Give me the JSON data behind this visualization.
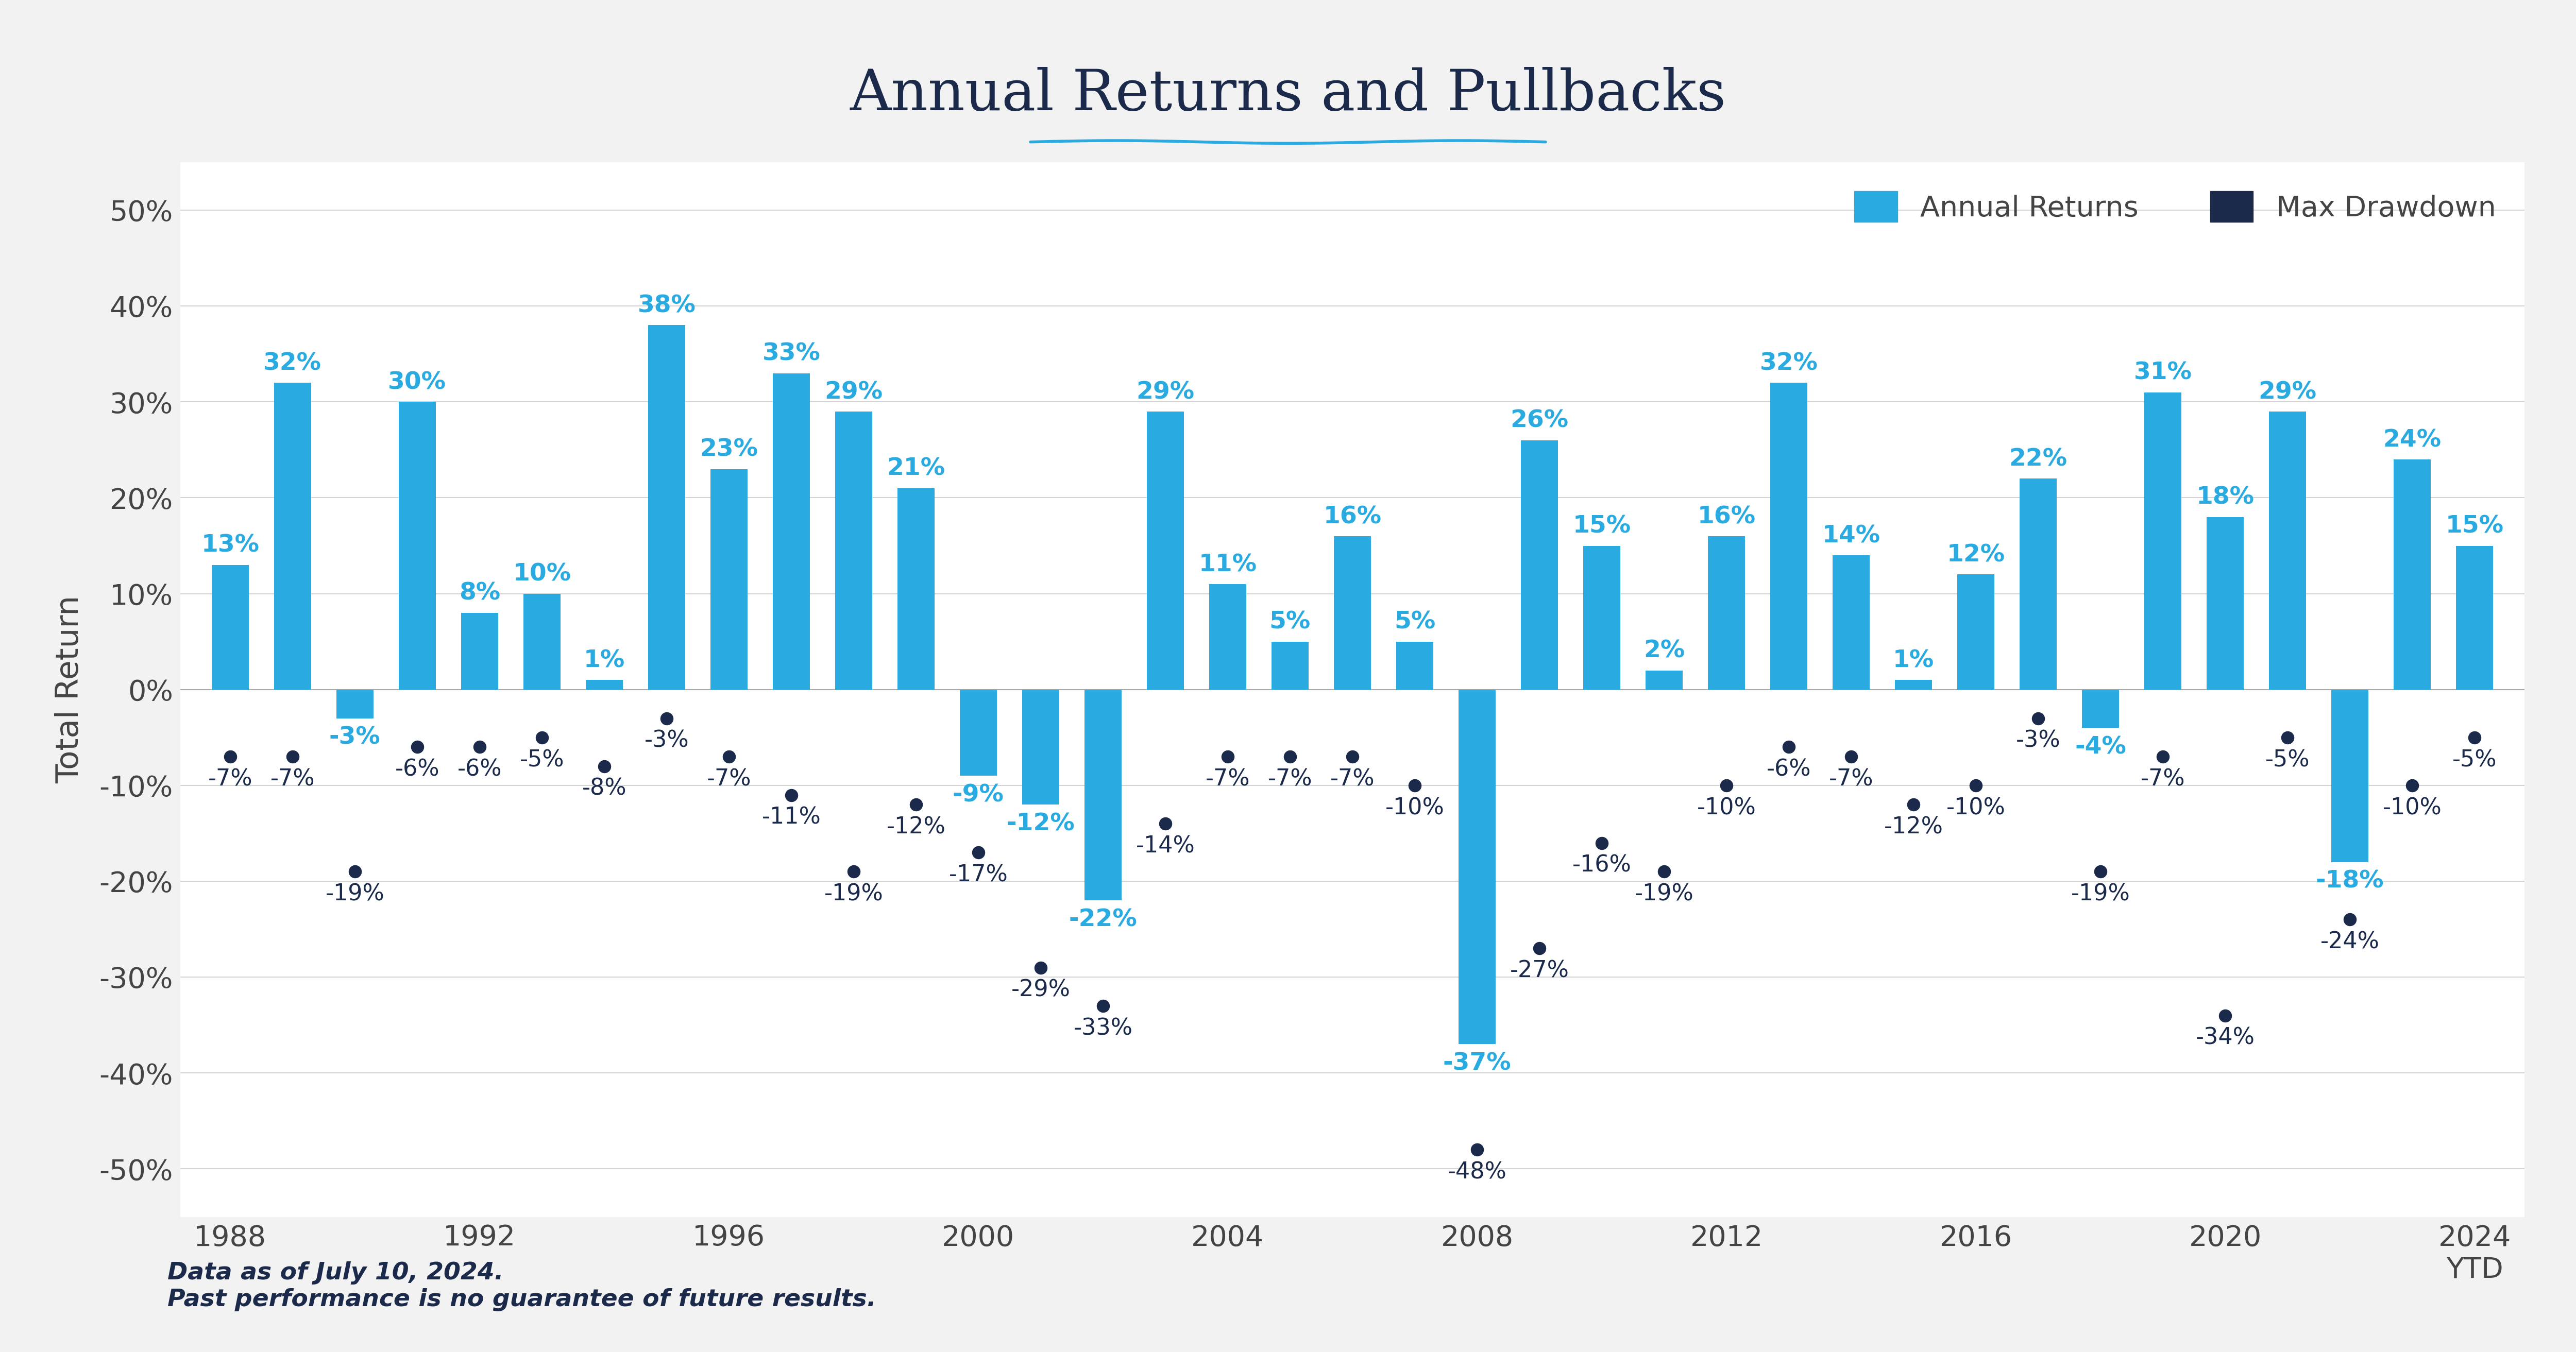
{
  "years": [
    1988,
    1989,
    1990,
    1991,
    1992,
    1993,
    1994,
    1995,
    1996,
    1997,
    1998,
    1999,
    2000,
    2001,
    2002,
    2003,
    2004,
    2005,
    2006,
    2007,
    2008,
    2009,
    2010,
    2011,
    2012,
    2013,
    2014,
    2015,
    2016,
    2017,
    2018,
    2019,
    2020,
    2021,
    2022,
    2023,
    2024
  ],
  "annual_returns": [
    13,
    32,
    -3,
    30,
    8,
    10,
    1,
    38,
    23,
    33,
    29,
    21,
    -9,
    -12,
    -22,
    29,
    11,
    5,
    16,
    5,
    -37,
    26,
    15,
    2,
    16,
    32,
    14,
    1,
    12,
    22,
    -4,
    31,
    18,
    29,
    -18,
    24,
    15
  ],
  "max_drawdowns": [
    -7,
    -7,
    -19,
    -6,
    -6,
    -5,
    -8,
    -3,
    -7,
    -11,
    -19,
    -12,
    -17,
    -29,
    -33,
    -14,
    -7,
    -7,
    -7,
    -10,
    -48,
    -27,
    -16,
    -19,
    -10,
    -6,
    -7,
    -12,
    -10,
    -3,
    -19,
    -7,
    -34,
    -5,
    -24,
    -10,
    -5
  ],
  "bar_color": "#29ABE2",
  "dot_color": "#1B2A4A",
  "figure_bg": "#F2F2F2",
  "plot_bg": "#FFFFFF",
  "title": "Annual Returns and Pullbacks",
  "title_color": "#1B2A4A",
  "title_underline_color": "#29ABE2",
  "ylabel": "Total Return",
  "legend_annual_label": "Annual Returns",
  "legend_drawdown_label": "Max Drawdown",
  "footnote1": "Data as of July 10, 2024.",
  "footnote2": "Past performance is no guarantee of future results.",
  "ylim_min": -55,
  "ylim_max": 55,
  "yticks": [
    -50,
    -40,
    -30,
    -20,
    -10,
    0,
    10,
    20,
    30,
    40,
    50
  ],
  "title_fontsize": 80,
  "axis_label_fontsize": 44,
  "tick_fontsize": 40,
  "bar_label_fontsize": 34,
  "dot_label_fontsize": 32,
  "legend_fontsize": 40,
  "footnote_fontsize": 34,
  "grid_color": "#CCCCCC",
  "zero_line_color": "#AAAAAA",
  "tick_color": "#444444"
}
